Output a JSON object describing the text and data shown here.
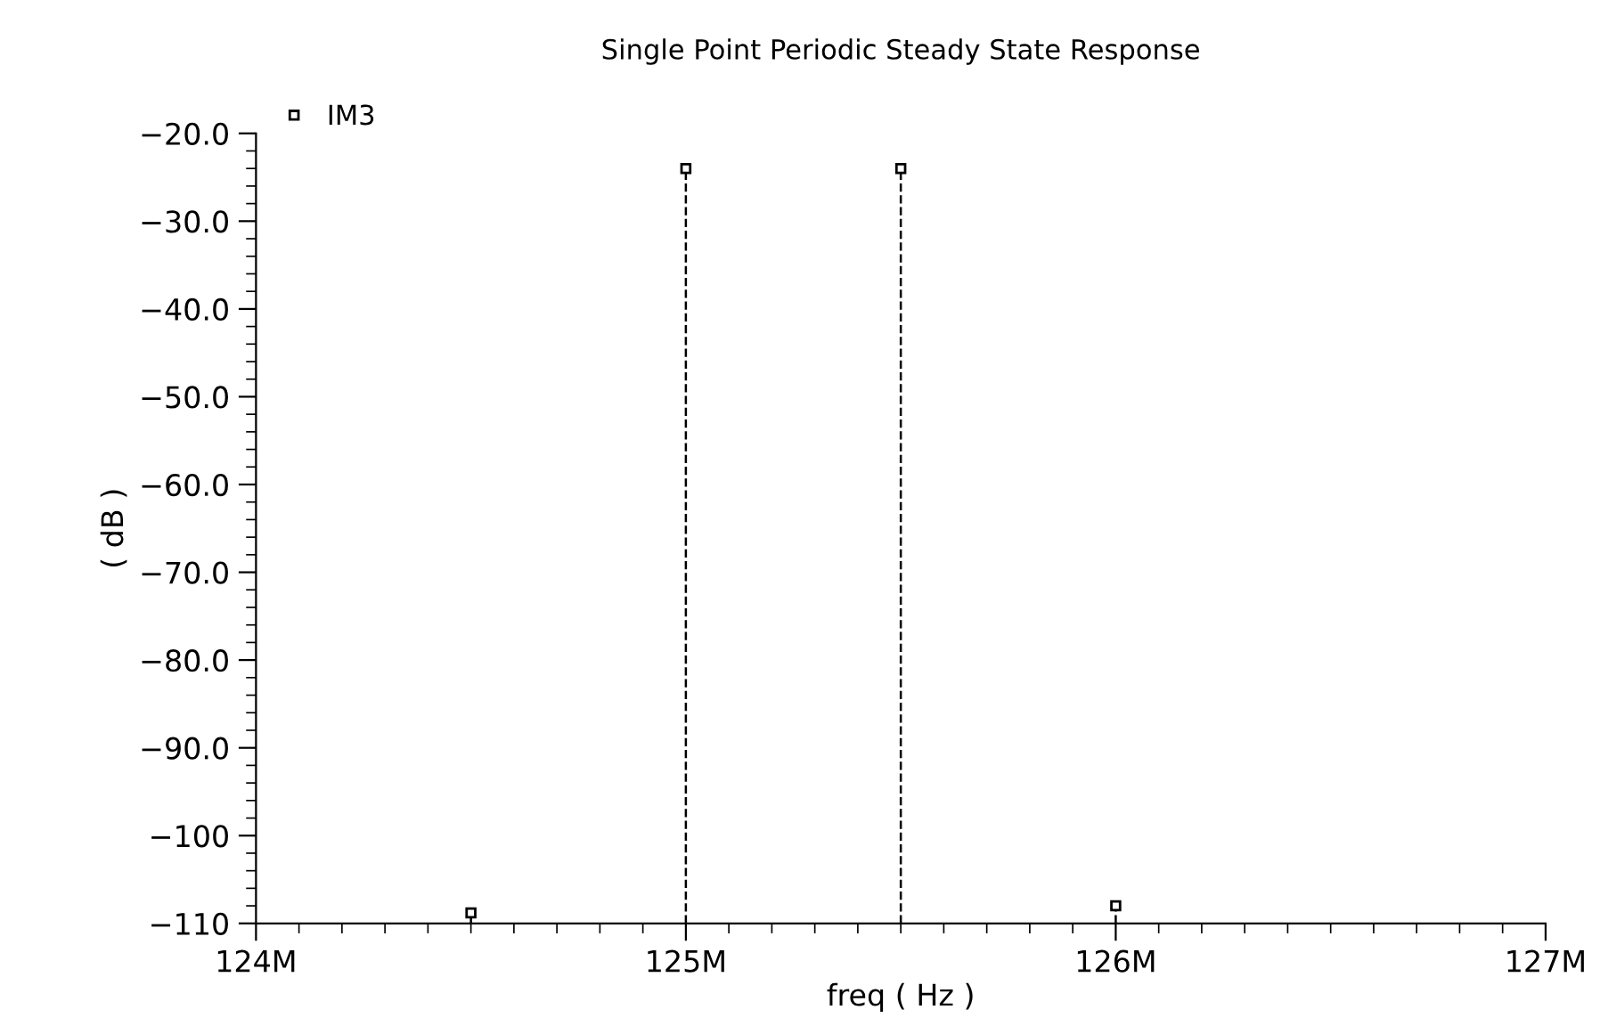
{
  "chart_data": {
    "type": "lollipop",
    "title": "Single Point Periodic Steady State Response",
    "xlabel": "freq ( Hz )",
    "ylabel": "( dB )",
    "x": [
      124500000,
      125000000,
      125500000,
      126000000
    ],
    "series": [
      {
        "name": "IM3",
        "color": "#000000",
        "values": [
          -108.8,
          -24,
          -24,
          -108
        ]
      }
    ],
    "xlim": [
      124000000,
      127000000
    ],
    "xticks": [
      {
        "value": 124000000,
        "label": "124M"
      },
      {
        "value": 125000000,
        "label": "125M"
      },
      {
        "value": 126000000,
        "label": "126M"
      },
      {
        "value": 127000000,
        "label": "127M"
      }
    ],
    "ylim": [
      -110,
      -20
    ],
    "yticks": [
      {
        "value": -110,
        "label": "−110"
      },
      {
        "value": -100,
        "label": "−100"
      },
      {
        "value": -90,
        "label": "−90.0"
      },
      {
        "value": -80,
        "label": "−80.0"
      },
      {
        "value": -70,
        "label": "−70.0"
      },
      {
        "value": -60,
        "label": "−60.0"
      },
      {
        "value": -50,
        "label": "−50.0"
      },
      {
        "value": -40,
        "label": "−40.0"
      },
      {
        "value": -30,
        "label": "−30.0"
      },
      {
        "value": -20,
        "label": "−20.0"
      }
    ],
    "marker": "square",
    "line_style": "dashed",
    "legend": "top left"
  }
}
